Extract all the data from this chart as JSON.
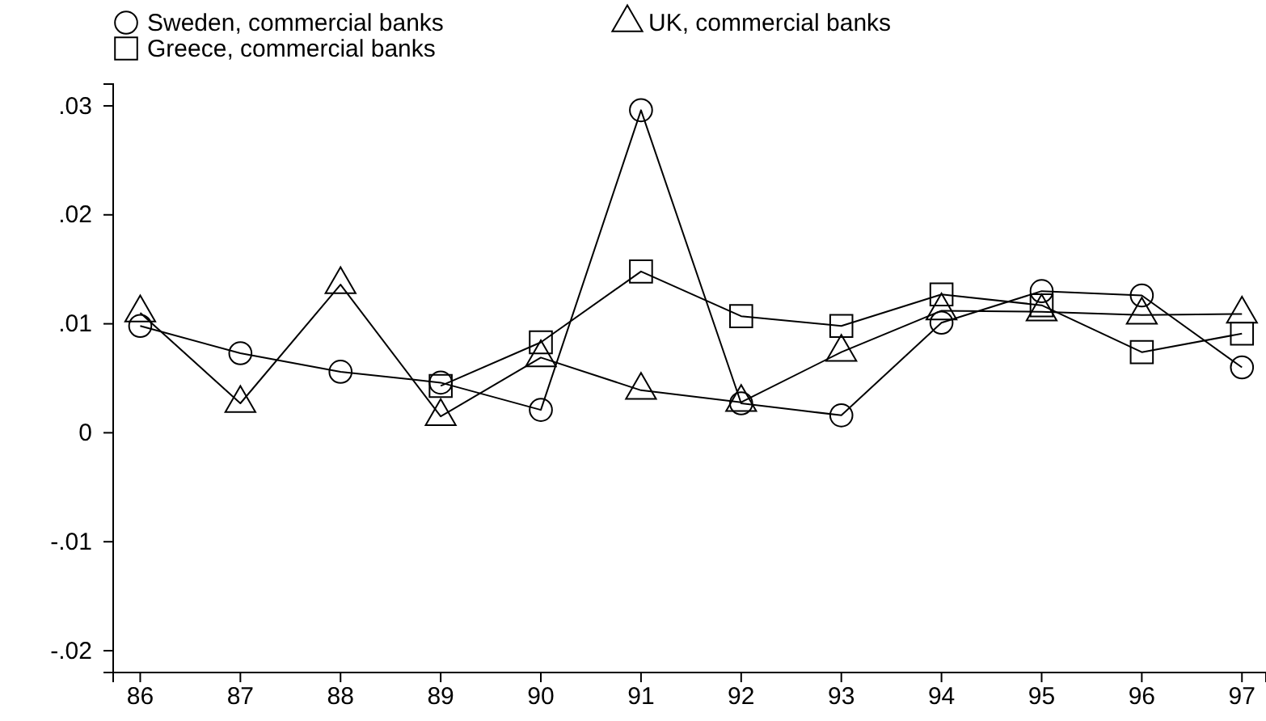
{
  "chart_data": {
    "type": "line",
    "x": [
      86,
      87,
      88,
      89,
      90,
      91,
      92,
      93,
      94,
      95,
      96,
      97
    ],
    "xlim": [
      85.73,
      97.24
    ],
    "xticks": [
      86,
      87,
      88,
      89,
      90,
      91,
      92,
      93,
      94,
      95,
      96,
      97
    ],
    "ylim": [
      -0.022,
      0.032
    ],
    "yticks": [
      {
        "value": -0.02,
        "label": "-.02"
      },
      {
        "value": -0.01,
        "label": "-.01"
      },
      0,
      {
        "value": 0.01,
        "label": ".01"
      },
      {
        "value": 0.02,
        "label": ".02"
      },
      {
        "value": 0.03,
        "label": ".03"
      }
    ],
    "grid": false,
    "legend": "top",
    "series": [
      {
        "name": "Sweden, commercial banks",
        "color": "#000000",
        "marker": "circle",
        "values": [
          0.0098,
          0.0073,
          0.0056,
          0.0046,
          0.0021,
          0.0296,
          0.0027,
          0.0016,
          0.0101,
          0.013,
          0.0126,
          0.006
        ]
      },
      {
        "name": "UK, commercial banks",
        "color": "#000000",
        "marker": "triangle",
        "values": [
          0.011,
          0.0027,
          0.0136,
          0.0015,
          0.0069,
          0.0039,
          0.0028,
          0.0074,
          0.0112,
          0.0111,
          0.0108,
          0.0109
        ]
      },
      {
        "name": "Greece, commercial banks",
        "color": "#000000",
        "marker": "square",
        "values": [
          null,
          null,
          null,
          0.0043,
          0.0083,
          0.0148,
          0.0107,
          0.0098,
          0.0127,
          0.0117,
          0.0074,
          0.0091
        ]
      }
    ]
  }
}
